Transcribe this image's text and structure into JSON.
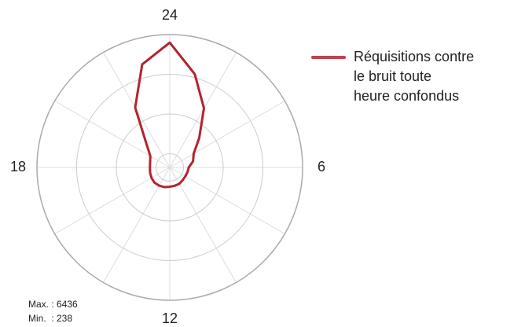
{
  "chart_data": {
    "type": "radar",
    "series": [
      {
        "name": "Réquisitions contre le bruit toute heure confondus",
        "color": "#b3232e",
        "values": [
          6436,
          4800,
          3164,
          1615,
          800,
          600,
          300,
          260,
          238,
          250,
          300,
          300,
          320,
          380,
          420,
          450,
          420,
          380,
          350,
          380,
          500,
          1100,
          3210,
          5380
        ]
      }
    ],
    "categories": [
      "24",
      null,
      null,
      null,
      null,
      null,
      "6",
      null,
      null,
      null,
      null,
      null,
      "12",
      null,
      null,
      null,
      null,
      null,
      "18",
      null,
      null,
      null,
      null,
      null
    ],
    "rlim": [
      -800,
      6900
    ],
    "rticks": [
      0,
      2300,
      4600,
      6900
    ],
    "notes": [
      "Max. : 6436",
      "Min.  : 238"
    ],
    "legend": "right"
  }
}
